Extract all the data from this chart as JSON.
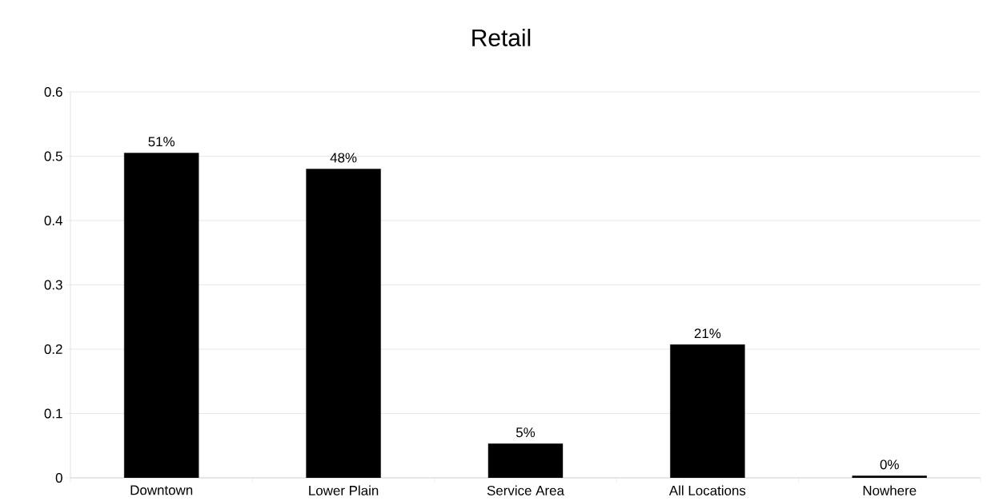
{
  "chart_data": {
    "type": "bar",
    "title": "Retail",
    "categories": [
      "Downtown",
      "Lower Plain",
      "Service Area",
      "All Locations",
      "Nowhere"
    ],
    "values": [
      0.505,
      0.48,
      0.053,
      0.207,
      0.003
    ],
    "value_labels": [
      "51%",
      "48%",
      "5%",
      "21%",
      "0%"
    ],
    "color": "#000000",
    "ylim": [
      0,
      0.6
    ],
    "yticks": [
      0,
      0.1,
      0.2,
      0.3,
      0.4,
      0.5,
      0.6
    ],
    "grid": "y"
  }
}
